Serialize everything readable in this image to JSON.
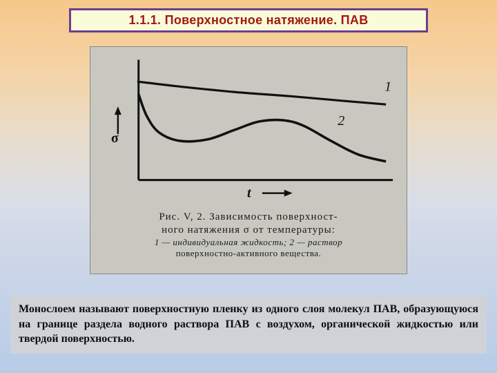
{
  "title": "1.1.1. Поверхностное натяжение. ПАВ",
  "figure": {
    "panel_bg": "#c8c8c0",
    "axis_color": "#111111",
    "axis_stroke": 3,
    "y_label": "σ",
    "x_label": "t",
    "label_fontsize": 18,
    "arrow_len": 34,
    "curves": {
      "curve1": {
        "label": "1",
        "stroke": "#111111",
        "stroke_width": 3.2,
        "points": [
          [
            60,
            42
          ],
          [
            120,
            49
          ],
          [
            200,
            57
          ],
          [
            280,
            63
          ],
          [
            360,
            70
          ],
          [
            420,
            75
          ]
        ]
      },
      "curve2": {
        "label": "2",
        "stroke": "#111111",
        "stroke_width": 3.6,
        "points": [
          [
            60,
            60
          ],
          [
            72,
            92
          ],
          [
            90,
            116
          ],
          [
            120,
            128
          ],
          [
            160,
            126
          ],
          [
            200,
            112
          ],
          [
            235,
            100
          ],
          [
            270,
            98
          ],
          [
            300,
            106
          ],
          [
            340,
            128
          ],
          [
            380,
            148
          ],
          [
            420,
            158
          ]
        ]
      }
    },
    "caption": {
      "line1": "Рис.  V, 2.  Зависимость  поверхност-",
      "line2": "ного  натяжения  σ  от  температуры:",
      "line3_prefix": "1 — индивидуальная  жидкость;  ",
      "line3_suffix": "2 — раствор",
      "line4": "поверхностно-активного  вещества."
    }
  },
  "definition": "Монослоем называют поверхностную пленку из одного слоя молекул ПАВ, образующуюся на границе раздела водного раствора ПАВ с воздухом, органической жидкостью или твердой поверхностью."
}
